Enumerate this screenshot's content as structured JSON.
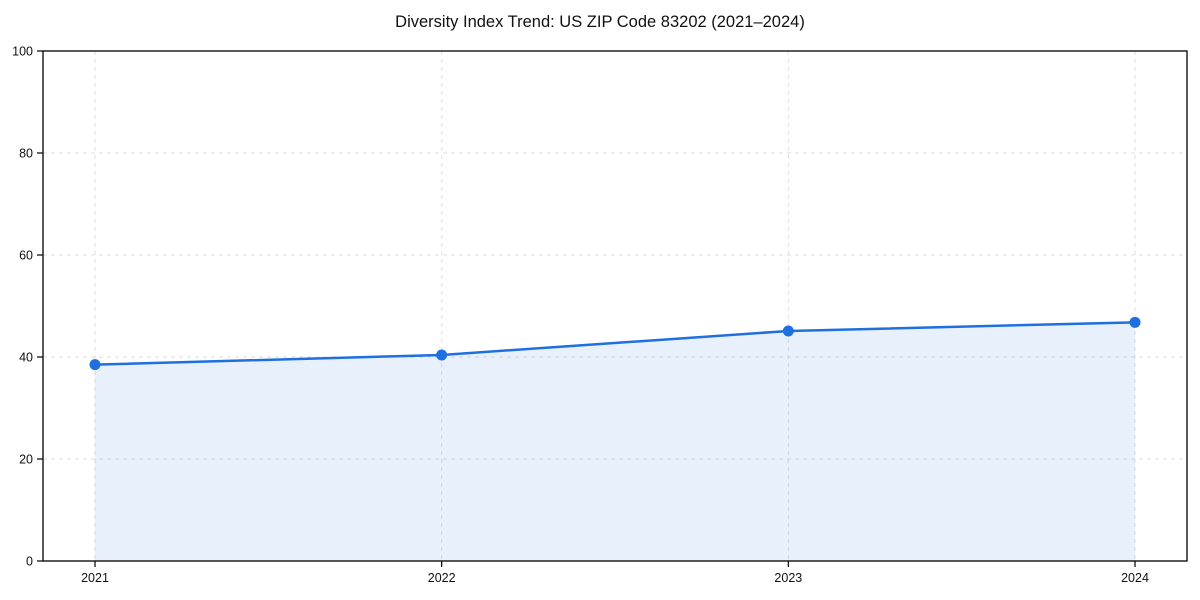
{
  "title": "Diversity Index Trend: US ZIP Code 83202 (2021–2024)",
  "chart_data": {
    "type": "area",
    "title": "Diversity Index Trend: US ZIP Code 83202 (2021–2024)",
    "categories": [
      "2021",
      "2022",
      "2023",
      "2024"
    ],
    "series": [
      {
        "name": "Diversity Index",
        "values": [
          38.5,
          40.4,
          45.1,
          46.8
        ]
      }
    ],
    "xlabel": "",
    "ylabel": "",
    "ylim": [
      0,
      100
    ],
    "yticks": [
      0,
      20,
      40,
      60,
      80,
      100
    ],
    "grid": true,
    "legend_position": "none",
    "line_color": "#1f6fe0",
    "marker_color": "#1f6fe0",
    "fill_color": "#1f6fe0",
    "fill_opacity": 0.1,
    "grid_color": "#dedede",
    "spine_color": "#000000"
  }
}
